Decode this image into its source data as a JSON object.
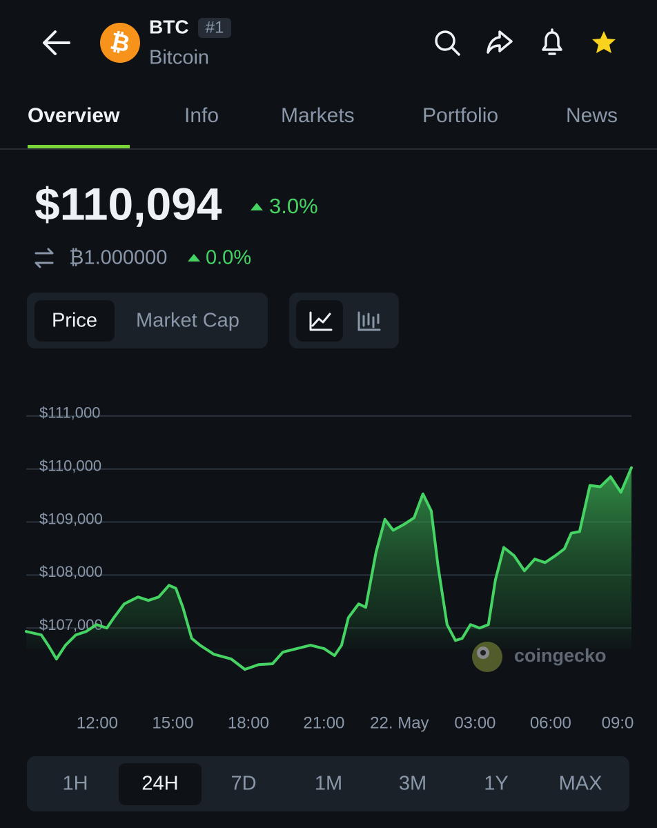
{
  "header": {
    "symbol": "BTC",
    "rank": "#1",
    "name": "Bitcoin"
  },
  "tabs": [
    "Overview",
    "Info",
    "Markets",
    "Portfolio",
    "News"
  ],
  "price": {
    "value": "$110,094",
    "change": "3.0%",
    "btc_value": "₿1.000000",
    "btc_change": "0.0%"
  },
  "toggles": [
    "Price",
    "Market Cap"
  ],
  "chart_data": {
    "type": "line",
    "color": "#45d463",
    "x": [
      9.18,
      9.78,
      10.05,
      10.38,
      10.74,
      11.15,
      11.56,
      11.97,
      12.38,
      12.66,
      13.07,
      13.62,
      14.03,
      14.44,
      14.85,
      15.12,
      15.4,
      15.75,
      16.08,
      16.63,
      17.32,
      17.86,
      18.41,
      18.96,
      19.37,
      19.92,
      20.47,
      21.01,
      21.42,
      21.7,
      21.97,
      22.38,
      22.66,
      23.07,
      23.42,
      23.75,
      24.16,
      24.58,
      24.93,
      25.26,
      25.53,
      25.89,
      26.22,
      26.49,
      26.82,
      27.18,
      27.53,
      27.81,
      28.14,
      28.55,
      28.96,
      29.37,
      29.78,
      30.19,
      30.55,
      30.82,
      31.15,
      31.56,
      31.97,
      32.38,
      32.79,
      33.21
    ],
    "values": [
      106935,
      106870,
      106675,
      106415,
      106675,
      106870,
      106935,
      107065,
      107000,
      107195,
      107455,
      107585,
      107520,
      107585,
      107805,
      107750,
      107390,
      106805,
      106675,
      106505,
      106415,
      106220,
      106310,
      106325,
      106545,
      106610,
      106675,
      106610,
      106480,
      106675,
      107195,
      107455,
      107390,
      108430,
      109050,
      108845,
      108950,
      109080,
      109530,
      109210,
      108170,
      107065,
      106765,
      106805,
      107065,
      107000,
      107065,
      107910,
      108520,
      108365,
      108080,
      108300,
      108235,
      108365,
      108495,
      108790,
      108820,
      109690,
      109665,
      109855,
      109560,
      110025
    ],
    "xlim": [
      9.18,
      33.21
    ],
    "xticks": [
      {
        "value": 12,
        "label": "12:00"
      },
      {
        "value": 15,
        "label": "15:00"
      },
      {
        "value": 18,
        "label": "18:00"
      },
      {
        "value": 21,
        "label": "21:00"
      },
      {
        "value": 24,
        "label": "22. May"
      },
      {
        "value": 27,
        "label": "03:00"
      },
      {
        "value": 30,
        "label": "06:00"
      },
      {
        "value": 33,
        "label": "09:0"
      }
    ],
    "ylim": [
      106000,
      111500
    ],
    "yticks": [
      {
        "value": 107000,
        "label": "$107,000"
      },
      {
        "value": 108000,
        "label": "$108,000"
      },
      {
        "value": 109000,
        "label": "$109,000"
      },
      {
        "value": 110000,
        "label": "$110,000"
      },
      {
        "value": 111000,
        "label": "$111,000"
      }
    ],
    "grid": true
  },
  "watermark": "coingecko",
  "ranges": [
    "1H",
    "24H",
    "7D",
    "1M",
    "3M",
    "1Y",
    "MAX"
  ]
}
